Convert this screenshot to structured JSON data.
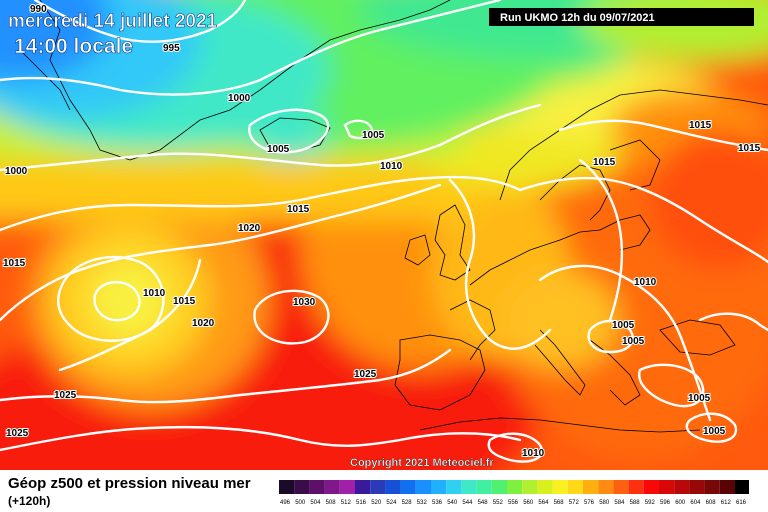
{
  "header": {
    "date": "mercredi 14 juillet 2021",
    "time": "14:00 locale",
    "run": "Run UKMO 12h du 09/07/2021"
  },
  "footer": {
    "title": "Géop z500 et pression niveau mer",
    "subtitle": "(+120h)",
    "copyright": "Copyright 2021 Meteociel.fr"
  },
  "colors": {
    "sea": "#1e90ff",
    "coast": "#000000",
    "isobar": "#ffffff"
  },
  "isobar_labels": [
    "990",
    "995",
    "1000",
    "1005",
    "1005",
    "1010",
    "1000",
    "1015",
    "1020",
    "1015",
    "1010",
    "1015",
    "1020",
    "1030",
    "1025",
    "1025",
    "1025",
    "1015",
    "1015",
    "1015",
    "1010",
    "1005",
    "1005",
    "1005",
    "1005",
    "1010"
  ],
  "legend_scale": {
    "values": [
      "496",
      "500",
      "504",
      "508",
      "512",
      "516",
      "520",
      "524",
      "528",
      "532",
      "536",
      "540",
      "544",
      "548",
      "552",
      "556",
      "560",
      "564",
      "568",
      "572",
      "576",
      "580",
      "584",
      "588",
      "592",
      "596",
      "600",
      "604",
      "608",
      "612",
      "616"
    ],
    "colors": [
      "#1a0c28",
      "#3a0c4a",
      "#5e1068",
      "#80188a",
      "#a020a8",
      "#3a1a9a",
      "#2a3ab8",
      "#1450d8",
      "#1070f0",
      "#1890ff",
      "#20b0ff",
      "#30d0f0",
      "#40e8c8",
      "#40f0a0",
      "#50f070",
      "#80f040",
      "#b0f030",
      "#d8f020",
      "#f8f020",
      "#ffd818",
      "#ffb010",
      "#ff8c10",
      "#ff6010",
      "#ff3010",
      "#f80808",
      "#d80808",
      "#b80808",
      "#980808",
      "#780808",
      "#580404",
      "#000000"
    ]
  }
}
